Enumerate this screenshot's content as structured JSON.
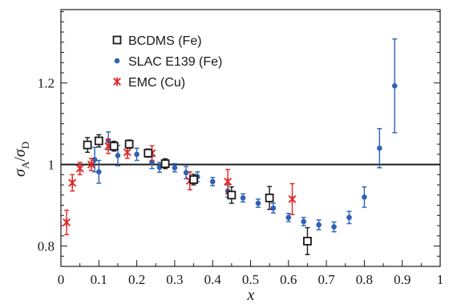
{
  "chart_data": {
    "type": "scatter",
    "xlabel": "x",
    "ylabel_main": "σ",
    "ylabel_sub_a": "A",
    "ylabel_slash": "/",
    "ylabel_sub_d": "D",
    "xlim": [
      0,
      1
    ],
    "ylim": [
      0.75,
      1.38
    ],
    "x_ticks": [
      0,
      0.1,
      0.2,
      0.3,
      0.4,
      0.5,
      0.6,
      0.7,
      0.8,
      0.9,
      1
    ],
    "x_tick_labels": [
      "0",
      "0.1",
      "0.2",
      "0.3",
      "0.4",
      "0.5",
      "0.6",
      "0.7",
      "0.8",
      "0.9",
      "1"
    ],
    "y_ticks": [
      0.8,
      1.0,
      1.2
    ],
    "y_tick_labels": [
      "0.8",
      "1",
      "1.2"
    ],
    "reference_line": 1.0,
    "grid": false,
    "legend_position": "upper-left",
    "series": [
      {
        "name": "BCDMS (Fe)",
        "marker": "open-square",
        "color": "#1a1a1a",
        "points": [
          {
            "x": 0.07,
            "y": 1.048,
            "err": 0.018
          },
          {
            "x": 0.1,
            "y": 1.058,
            "err": 0.015
          },
          {
            "x": 0.14,
            "y": 1.045,
            "err": 0.012
          },
          {
            "x": 0.18,
            "y": 1.05,
            "err": 0.01
          },
          {
            "x": 0.23,
            "y": 1.028,
            "err": 0.01
          },
          {
            "x": 0.275,
            "y": 1.002,
            "err": 0.012
          },
          {
            "x": 0.35,
            "y": 0.963,
            "err": 0.013
          },
          {
            "x": 0.45,
            "y": 0.925,
            "err": 0.02
          },
          {
            "x": 0.55,
            "y": 0.918,
            "err": 0.028
          },
          {
            "x": 0.65,
            "y": 0.812,
            "err": 0.033
          }
        ]
      },
      {
        "name": "SLAC E139 (Fe)",
        "marker": "filled-circle",
        "color": "#2e62b3",
        "points": [
          {
            "x": 0.089,
            "y": 1.012,
            "err": 0.03
          },
          {
            "x": 0.1,
            "y": 0.982,
            "err": 0.028
          },
          {
            "x": 0.125,
            "y": 1.058,
            "err": 0.022
          },
          {
            "x": 0.15,
            "y": 1.022,
            "err": 0.025
          },
          {
            "x": 0.2,
            "y": 1.025,
            "err": 0.015
          },
          {
            "x": 0.24,
            "y": 1.005,
            "err": 0.015
          },
          {
            "x": 0.26,
            "y": 0.993,
            "err": 0.012
          },
          {
            "x": 0.3,
            "y": 0.992,
            "err": 0.01
          },
          {
            "x": 0.33,
            "y": 0.98,
            "err": 0.015
          },
          {
            "x": 0.36,
            "y": 0.97,
            "err": 0.012
          },
          {
            "x": 0.4,
            "y": 0.958,
            "err": 0.01
          },
          {
            "x": 0.44,
            "y": 0.935,
            "err": 0.015
          },
          {
            "x": 0.48,
            "y": 0.918,
            "err": 0.01
          },
          {
            "x": 0.52,
            "y": 0.905,
            "err": 0.01
          },
          {
            "x": 0.56,
            "y": 0.893,
            "err": 0.012
          },
          {
            "x": 0.6,
            "y": 0.87,
            "err": 0.01
          },
          {
            "x": 0.64,
            "y": 0.86,
            "err": 0.01
          },
          {
            "x": 0.68,
            "y": 0.852,
            "err": 0.012
          },
          {
            "x": 0.72,
            "y": 0.847,
            "err": 0.012
          },
          {
            "x": 0.76,
            "y": 0.87,
            "err": 0.015
          },
          {
            "x": 0.8,
            "y": 0.92,
            "err": 0.025
          },
          {
            "x": 0.84,
            "y": 1.04,
            "err": 0.048
          },
          {
            "x": 0.88,
            "y": 1.193,
            "err": 0.115
          }
        ]
      },
      {
        "name": "EMC (Cu)",
        "marker": "asterisk",
        "color": "#e32222",
        "points": [
          {
            "x": 0.015,
            "y": 0.858,
            "err": 0.03
          },
          {
            "x": 0.03,
            "y": 0.955,
            "err": 0.02
          },
          {
            "x": 0.05,
            "y": 0.99,
            "err": 0.015
          },
          {
            "x": 0.08,
            "y": 1.0,
            "err": 0.015
          },
          {
            "x": 0.125,
            "y": 1.045,
            "err": 0.018
          },
          {
            "x": 0.175,
            "y": 1.03,
            "err": 0.015
          },
          {
            "x": 0.24,
            "y": 1.028,
            "err": 0.018
          },
          {
            "x": 0.34,
            "y": 0.96,
            "err": 0.022
          },
          {
            "x": 0.44,
            "y": 0.958,
            "err": 0.03
          },
          {
            "x": 0.61,
            "y": 0.915,
            "err": 0.038
          }
        ]
      }
    ]
  }
}
